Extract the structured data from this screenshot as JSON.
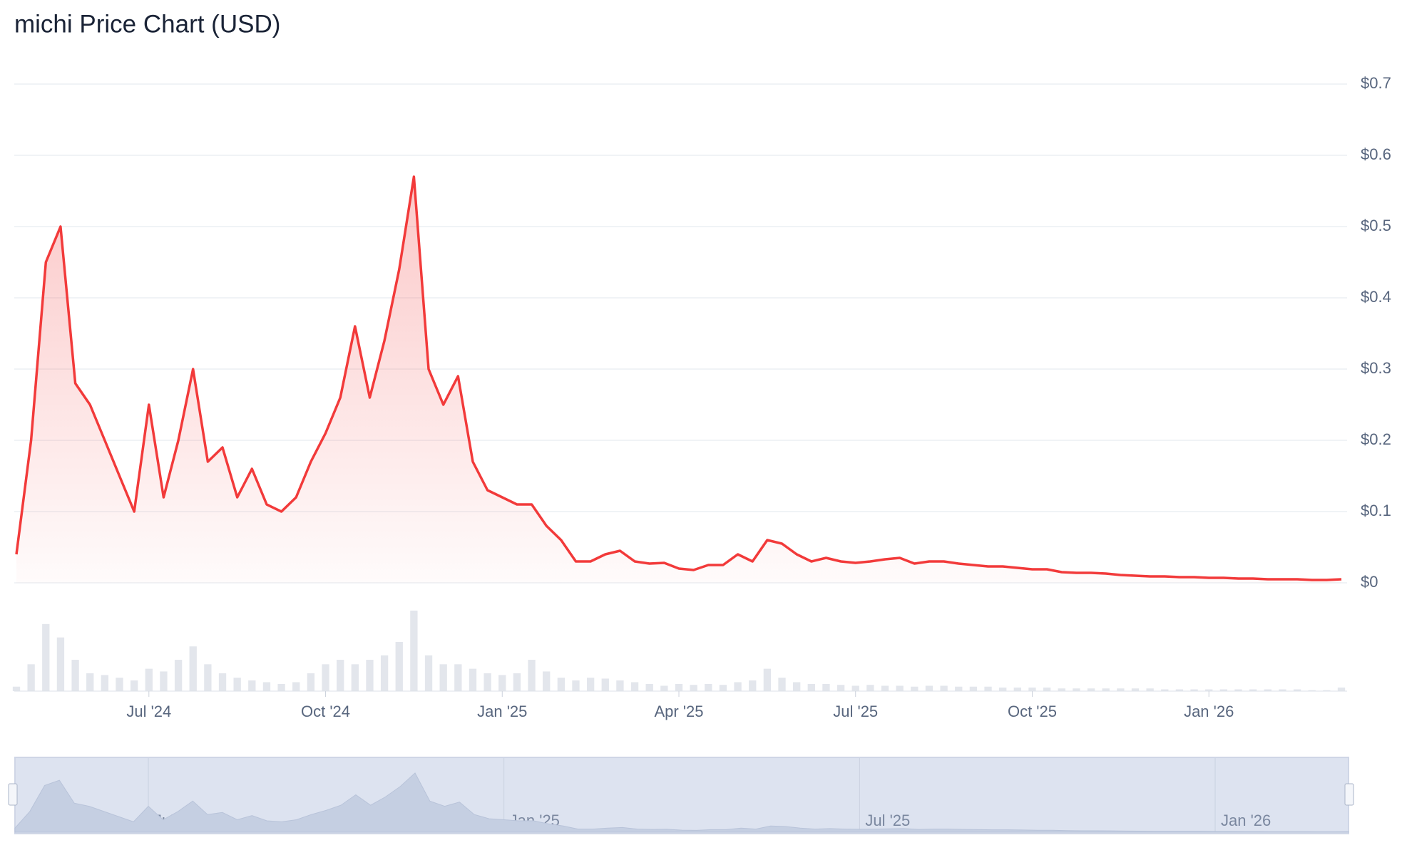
{
  "chart_data": {
    "type": "line",
    "title": "michi Price Chart (USD)",
    "color": "#f23a3a",
    "categories": [
      null,
      null,
      null,
      null,
      null,
      null,
      null,
      null,
      null,
      "Jul '24",
      null,
      null,
      null,
      null,
      null,
      null,
      null,
      null,
      null,
      null,
      null,
      "Oct '24",
      null,
      null,
      null,
      null,
      null,
      null,
      null,
      null,
      null,
      null,
      null,
      "Jan '25",
      null,
      null,
      null,
      null,
      null,
      null,
      null,
      null,
      null,
      null,
      null,
      "Apr '25",
      null,
      null,
      null,
      null,
      null,
      null,
      null,
      null,
      null,
      null,
      null,
      "Jul '25",
      null,
      null,
      null,
      null,
      null,
      null,
      null,
      null,
      null,
      null,
      null,
      "Oct '25",
      null,
      null,
      null,
      null,
      null,
      null,
      null,
      null,
      null,
      null,
      null,
      "Jan '26",
      null,
      null,
      null,
      null,
      null,
      null,
      null,
      null,
      null
    ],
    "values": [
      0.04,
      0.2,
      0.45,
      0.5,
      0.28,
      0.25,
      0.2,
      0.15,
      0.1,
      0.25,
      0.12,
      0.2,
      0.3,
      0.17,
      0.19,
      0.12,
      0.16,
      0.11,
      0.1,
      0.12,
      0.17,
      0.21,
      0.26,
      0.36,
      0.26,
      0.34,
      0.44,
      0.57,
      0.3,
      0.25,
      0.29,
      0.17,
      0.13,
      0.12,
      0.11,
      0.11,
      0.08,
      0.06,
      0.03,
      0.03,
      0.04,
      0.045,
      0.03,
      0.027,
      0.028,
      0.02,
      0.018,
      0.025,
      0.025,
      0.04,
      0.03,
      0.06,
      0.055,
      0.04,
      0.03,
      0.035,
      0.03,
      0.028,
      0.03,
      0.033,
      0.035,
      0.027,
      0.03,
      0.03,
      0.027,
      0.025,
      0.023,
      0.023,
      0.021,
      0.019,
      0.019,
      0.015,
      0.014,
      0.014,
      0.013,
      0.011,
      0.01,
      0.009,
      0.009,
      0.008,
      0.008,
      0.007,
      0.007,
      0.006,
      0.006,
      0.005,
      0.005,
      0.005,
      0.004,
      0.004,
      0.005
    ],
    "volume": [
      5,
      30,
      75,
      60,
      35,
      20,
      18,
      15,
      12,
      25,
      22,
      35,
      50,
      30,
      20,
      15,
      12,
      10,
      8,
      10,
      20,
      30,
      35,
      30,
      35,
      40,
      55,
      90,
      40,
      30,
      30,
      25,
      20,
      18,
      20,
      35,
      22,
      15,
      12,
      15,
      14,
      12,
      10,
      8,
      6,
      8,
      7,
      8,
      7,
      10,
      12,
      25,
      15,
      10,
      8,
      8,
      7,
      6,
      7,
      6,
      6,
      5,
      6,
      6,
      5,
      5,
      5,
      4,
      4,
      4,
      4,
      3,
      3,
      3,
      3,
      3,
      3,
      3,
      2,
      2,
      2,
      2,
      2,
      2,
      2,
      2,
      2,
      2,
      1,
      1,
      4
    ],
    "ylim": [
      0,
      0.7
    ],
    "yticks": [
      {
        "value": 0,
        "label": "$0"
      },
      {
        "value": 0.1,
        "label": "$0.1"
      },
      {
        "value": 0.2,
        "label": "$0.2"
      },
      {
        "value": 0.3,
        "label": "$0.3"
      },
      {
        "value": 0.4,
        "label": "$0.4"
      },
      {
        "value": 0.5,
        "label": "$0.5"
      },
      {
        "value": 0.6,
        "label": "$0.6"
      },
      {
        "value": 0.7,
        "label": "$0.7"
      }
    ],
    "grid": true
  }
}
